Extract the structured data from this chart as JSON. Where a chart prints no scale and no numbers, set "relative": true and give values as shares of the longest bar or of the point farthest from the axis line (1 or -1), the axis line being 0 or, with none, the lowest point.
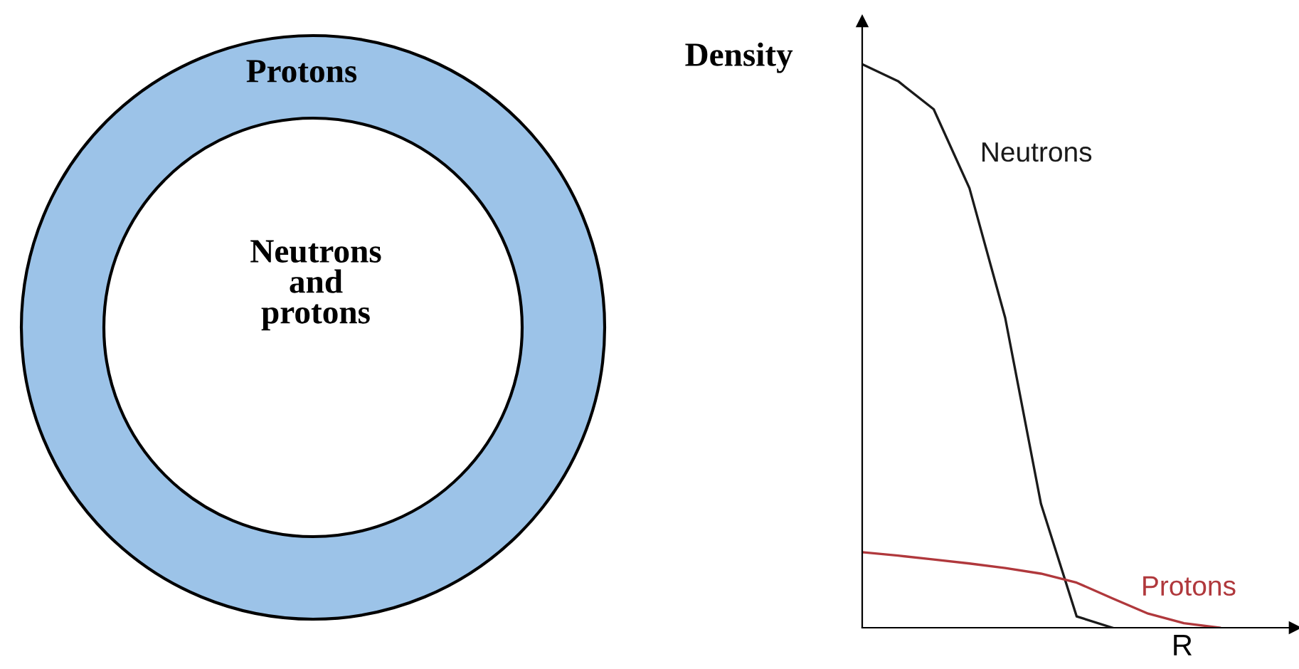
{
  "chart_data": {
    "type": "line",
    "relative": true,
    "xlabel": "R",
    "ylabel": "Density",
    "legend": false,
    "categories": [
      null,
      null,
      null,
      null,
      null,
      null,
      null,
      null,
      null,
      null,
      null,
      null,
      null
    ],
    "series": [
      {
        "name": "Neutrons",
        "color": "#1a1a1a",
        "values": [
          1.0,
          0.97,
          0.92,
          0.78,
          0.55,
          0.22,
          0.02,
          0,
          null,
          null,
          null,
          null,
          null
        ]
      },
      {
        "name": "Protons",
        "color": "#b0383c",
        "values": [
          0.134,
          0.128,
          0.121,
          0.114,
          0.106,
          0.096,
          0.08,
          0.052,
          0.025,
          0.008,
          0,
          null,
          null
        ]
      }
    ],
    "annotations": [
      "Protons",
      "Neutrons\nand\nprotons"
    ]
  }
}
